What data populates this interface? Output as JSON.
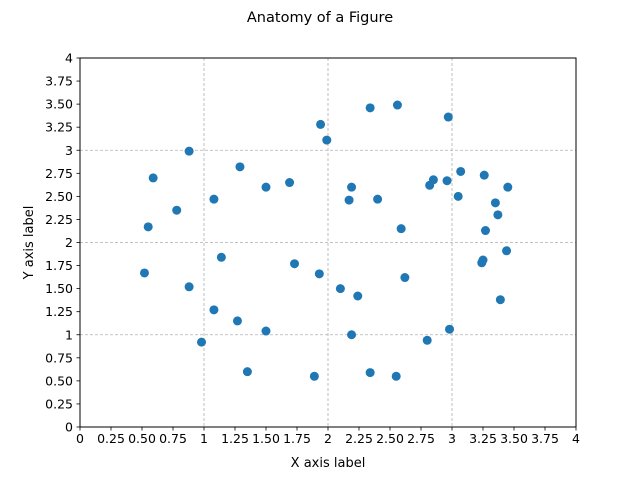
{
  "chart_data": {
    "type": "scatter",
    "title": "Anatomy of a Figure",
    "xlabel": "X axis label",
    "ylabel": "Y axis label",
    "xlim": [
      0,
      4
    ],
    "ylim": [
      0,
      4
    ],
    "grid": {
      "major": true,
      "style": "dashed"
    },
    "major_ticks": [
      1,
      2,
      3,
      4
    ],
    "x_ticks": [
      {
        "value": 0,
        "label": "0"
      },
      {
        "value": 0.25,
        "label": "0.25"
      },
      {
        "value": 0.5,
        "label": "0.50"
      },
      {
        "value": 0.75,
        "label": "0.75"
      },
      {
        "value": 1,
        "label": "1"
      },
      {
        "value": 1.25,
        "label": "1.25"
      },
      {
        "value": 1.5,
        "label": "1.50"
      },
      {
        "value": 1.75,
        "label": "1.75"
      },
      {
        "value": 2,
        "label": "2"
      },
      {
        "value": 2.25,
        "label": "2.25"
      },
      {
        "value": 2.5,
        "label": "2.50"
      },
      {
        "value": 2.75,
        "label": "2.75"
      },
      {
        "value": 3,
        "label": "3"
      },
      {
        "value": 3.25,
        "label": "3.25"
      },
      {
        "value": 3.5,
        "label": "3.50"
      },
      {
        "value": 3.75,
        "label": "3.75"
      },
      {
        "value": 4,
        "label": "4"
      }
    ],
    "y_ticks": [
      {
        "value": 0,
        "label": "0"
      },
      {
        "value": 0.25,
        "label": "0.25"
      },
      {
        "value": 0.5,
        "label": "0.50"
      },
      {
        "value": 0.75,
        "label": "0.75"
      },
      {
        "value": 1,
        "label": "1"
      },
      {
        "value": 1.25,
        "label": "1.25"
      },
      {
        "value": 1.5,
        "label": "1.50"
      },
      {
        "value": 1.75,
        "label": "1.75"
      },
      {
        "value": 2,
        "label": "2"
      },
      {
        "value": 2.25,
        "label": "2.25"
      },
      {
        "value": 2.5,
        "label": "2.50"
      },
      {
        "value": 2.75,
        "label": "2.75"
      },
      {
        "value": 3,
        "label": "3"
      },
      {
        "value": 3.25,
        "label": "3.25"
      },
      {
        "value": 3.5,
        "label": "3.50"
      },
      {
        "value": 3.75,
        "label": "3.75"
      },
      {
        "value": 4,
        "label": "4"
      }
    ],
    "series": [
      {
        "color": "#1f77b4",
        "points": [
          [
            0.52,
            1.67
          ],
          [
            0.55,
            2.17
          ],
          [
            0.59,
            2.7
          ],
          [
            0.78,
            2.35
          ],
          [
            0.88,
            2.99
          ],
          [
            0.88,
            1.52
          ],
          [
            0.98,
            0.92
          ],
          [
            1.08,
            2.47
          ],
          [
            1.08,
            1.27
          ],
          [
            1.14,
            1.84
          ],
          [
            1.27,
            1.15
          ],
          [
            1.29,
            2.82
          ],
          [
            1.35,
            0.6
          ],
          [
            1.5,
            2.6
          ],
          [
            1.5,
            1.04
          ],
          [
            1.69,
            2.65
          ],
          [
            1.73,
            1.77
          ],
          [
            1.89,
            0.55
          ],
          [
            1.93,
            1.66
          ],
          [
            1.94,
            3.28
          ],
          [
            1.99,
            3.11
          ],
          [
            2.1,
            1.5
          ],
          [
            2.17,
            2.46
          ],
          [
            2.19,
            2.6
          ],
          [
            2.19,
            1.0
          ],
          [
            2.24,
            1.42
          ],
          [
            2.34,
            3.46
          ],
          [
            2.34,
            0.59
          ],
          [
            2.4,
            2.47
          ],
          [
            2.55,
            0.55
          ],
          [
            2.56,
            3.49
          ],
          [
            2.59,
            2.15
          ],
          [
            2.62,
            1.62
          ],
          [
            2.8,
            0.94
          ],
          [
            2.82,
            2.62
          ],
          [
            2.85,
            2.68
          ],
          [
            2.96,
            2.67
          ],
          [
            2.97,
            3.36
          ],
          [
            2.98,
            1.06
          ],
          [
            3.05,
            2.5
          ],
          [
            3.07,
            2.77
          ],
          [
            3.24,
            1.78
          ],
          [
            3.25,
            1.81
          ],
          [
            3.26,
            2.73
          ],
          [
            3.27,
            2.13
          ],
          [
            3.35,
            2.43
          ],
          [
            3.37,
            2.3
          ],
          [
            3.39,
            1.38
          ],
          [
            3.44,
            1.91
          ],
          [
            3.45,
            2.6
          ]
        ]
      }
    ]
  }
}
